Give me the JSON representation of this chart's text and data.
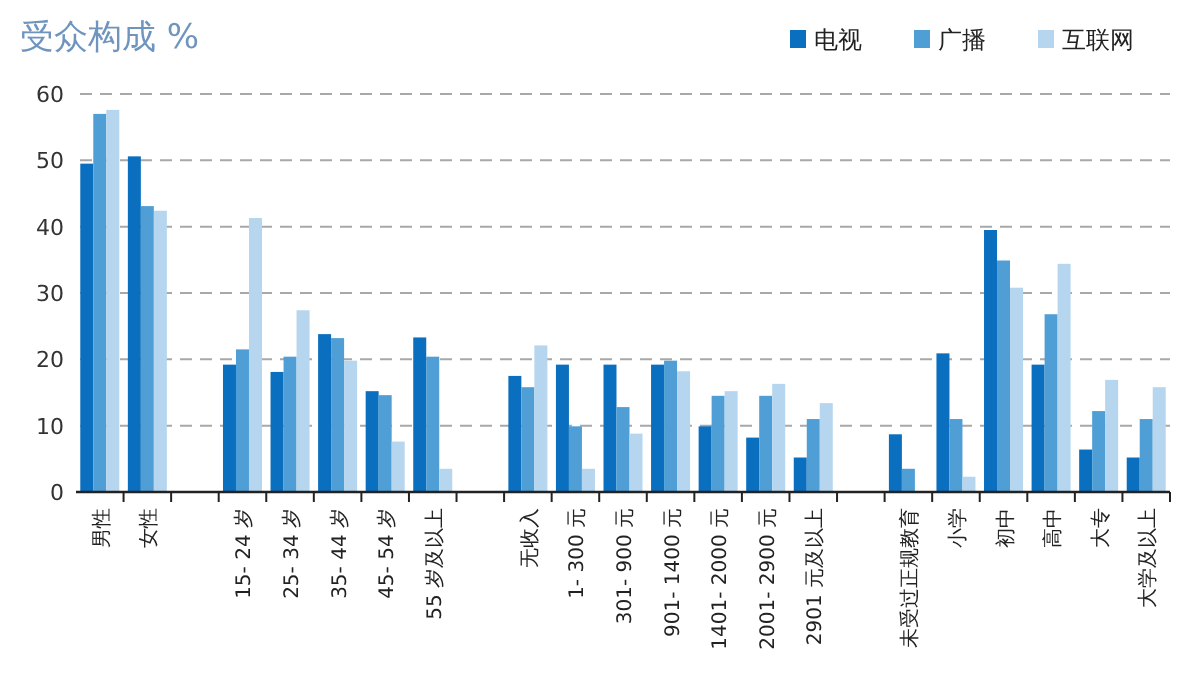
{
  "chart_data": {
    "type": "bar",
    "title": "受众构成 %",
    "categories": [
      "男性",
      "女性",
      null,
      "15- 24 岁",
      "25- 34 岁",
      "35- 44 岁",
      "45- 54 岁",
      "55 岁及以上",
      null,
      "无收入",
      "1- 300 元",
      "301- 900 元",
      "901- 1400 元",
      "1401- 2000 元",
      "2001- 2900 元",
      "2901 元及以上",
      null,
      "未受过正规教育",
      "小学",
      "初中",
      "高中",
      "大专",
      "大学及以上"
    ],
    "series": [
      {
        "name": "电视",
        "color": "#0a6fbf",
        "values": [
          49.5,
          50.6,
          null,
          19.2,
          18.1,
          23.8,
          15.2,
          23.3,
          null,
          17.5,
          19.2,
          19.2,
          19.2,
          9.9,
          8.2,
          5.2,
          null,
          8.7,
          20.9,
          39.5,
          19.2,
          6.4,
          5.2
        ]
      },
      {
        "name": "广播",
        "color": "#4f9fd6",
        "values": [
          57,
          43.1,
          null,
          21.5,
          20.4,
          23.2,
          14.6,
          20.4,
          null,
          15.8,
          9.9,
          12.8,
          19.8,
          14.5,
          14.5,
          11,
          null,
          3.5,
          11,
          34.9,
          26.8,
          12.2,
          11
        ]
      },
      {
        "name": "互联网",
        "color": "#b5d6ee",
        "values": [
          57.6,
          42.4,
          null,
          41.3,
          27.4,
          19.8,
          7.6,
          3.5,
          null,
          22.1,
          3.5,
          8.8,
          18.2,
          15.2,
          16.3,
          13.4,
          null,
          null,
          2.3,
          30.8,
          34.4,
          16.9,
          15.8
        ]
      }
    ],
    "ylim": [
      0,
      60
    ],
    "yticks": [
      0,
      10,
      20,
      30,
      40,
      50,
      60
    ],
    "grid": "y",
    "legend": "top right"
  }
}
